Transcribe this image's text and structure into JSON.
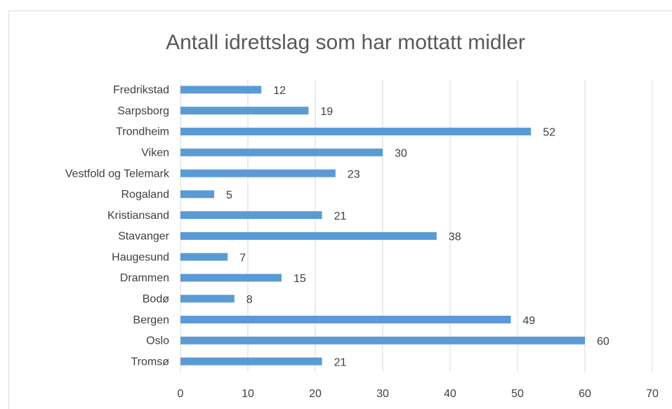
{
  "chart_data": {
    "type": "bar",
    "orientation": "horizontal",
    "title": "Antall idrettslag som har mottatt midler",
    "categories": [
      "Fredrikstad",
      "Sarpsborg",
      "Trondheim",
      "Viken",
      "Vestfold og Telemark",
      "Rogaland",
      "Kristiansand",
      "Stavanger",
      "Haugesund",
      "Drammen",
      "Bodø",
      "Bergen",
      "Oslo",
      "Tromsø"
    ],
    "values": [
      12,
      19,
      52,
      30,
      23,
      5,
      21,
      38,
      7,
      15,
      8,
      49,
      60,
      21
    ],
    "color": "#5b9bd5",
    "xlim": [
      0,
      70
    ],
    "xticks": [
      0,
      10,
      20,
      30,
      40,
      50,
      60,
      70
    ],
    "grid": true
  }
}
